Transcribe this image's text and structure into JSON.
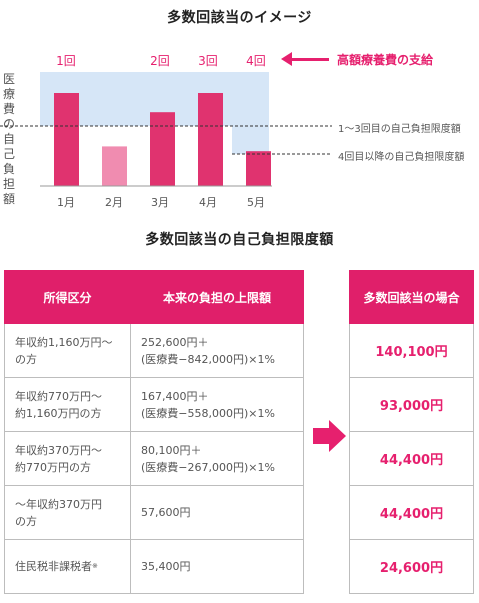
{
  "titles": {
    "top": "多数回該当のイメージ",
    "middle": "多数回該当の自己負担限度額"
  },
  "chart_data": {
    "type": "bar",
    "ylabel": "医療費の自己負担額",
    "categories": [
      "1月",
      "2月",
      "3月",
      "4月",
      "5月"
    ],
    "counts": [
      "1回",
      "",
      "2回",
      "3回",
      "4回"
    ],
    "bar_colors": [
      "#e0336f",
      "#f08cb0",
      "#e0336f",
      "#e0336f",
      "#e0336f"
    ],
    "values": [
      1.55,
      0.66,
      1.23,
      1.55,
      0.58
    ],
    "lines": {
      "threshold_1": 1.0,
      "threshold_4": 0.37
    },
    "dashed_labels": {
      "first": "1〜3回目の自己負担限度額",
      "second": "4回目以降の自己負担限度額"
    },
    "legend": "高額療養費の支給",
    "colors": {
      "accent": "#e6206e",
      "light_pink": "#f08cb0",
      "shade": "#d6e6f7"
    }
  },
  "table": {
    "headers": [
      "所得区分",
      "本来の負担の上限額"
    ],
    "side_header": "多数回該当の場合",
    "rows": [
      {
        "category_1": "年収約1,160万円〜",
        "category_2": "の方",
        "limit_1": "252,600円＋",
        "limit_2": "(医療費−842,000円)×1%",
        "multiple": "140,100円"
      },
      {
        "category_1": "年収約770万円〜",
        "category_2": "約1,160万円の方",
        "limit_1": "167,400円＋",
        "limit_2": "(医療費−558,000円)×1%",
        "multiple": "93,000円"
      },
      {
        "category_1": "年収約370万円〜",
        "category_2": "約770万円の方",
        "limit_1": "80,100円＋",
        "limit_2": "(医療費−267,000円)×1%",
        "multiple": "44,400円"
      },
      {
        "category_1": "〜年収約370万円",
        "category_2": "の方",
        "limit_1": "57,600円",
        "limit_2": "",
        "multiple": "44,400円"
      },
      {
        "category_1": "住民税非課税者",
        "category_2": "",
        "note_mark": "※",
        "limit_1": "35,400円",
        "limit_2": "",
        "multiple": "24,600円"
      }
    ]
  }
}
